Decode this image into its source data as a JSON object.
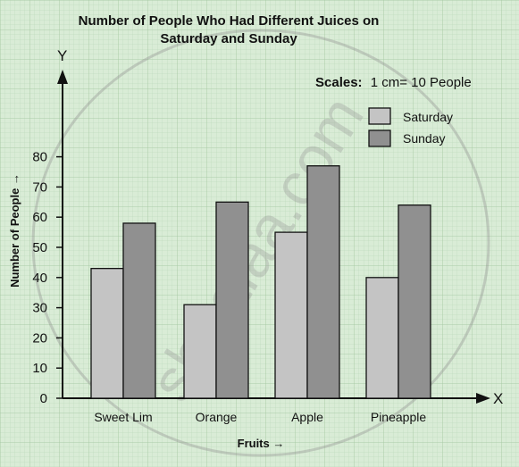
{
  "chart_data": {
    "type": "bar",
    "title_lines": [
      "Number of People Who Had Different Juices on",
      "Saturday and Sunday"
    ],
    "scales_label": "Scales:",
    "scales_value": "1 cm= 10 People",
    "xlabel": "Fruits  →",
    "ylabel": "Number of People  →",
    "x_axis_letter": "X",
    "y_axis_letter": "Y",
    "categories": [
      "Sweet Lim",
      "Orange",
      "Apple",
      "Pineapple"
    ],
    "y_ticks": [
      "0",
      "10",
      "20",
      "30",
      "40",
      "50",
      "60",
      "70",
      "80"
    ],
    "ylim": [
      0,
      80
    ],
    "grid": true,
    "legend_position": "top-right",
    "series": [
      {
        "name": "Saturday",
        "values": [
          43,
          31,
          55,
          40
        ],
        "color": "#c4c4c4"
      },
      {
        "name": "Sunday",
        "values": [
          58,
          65,
          77,
          64
        ],
        "color": "#909090"
      }
    ],
    "watermark": "shaalaa.com"
  }
}
